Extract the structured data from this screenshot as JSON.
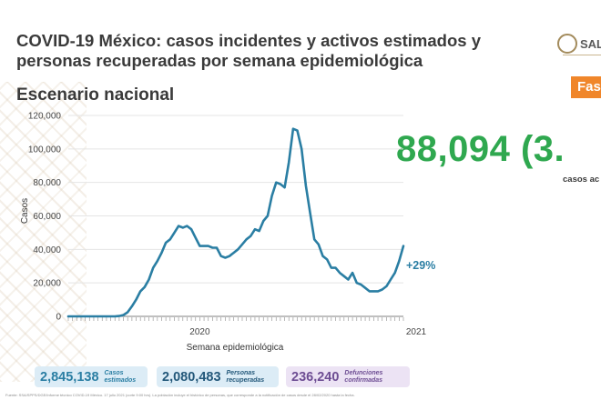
{
  "header": {
    "title": "COVID-19 México: casos incidentes y activos estimados y personas recuperadas por semana epidemiológica",
    "subtitle": "Escenario nacional",
    "logo_text": "SAL",
    "phase_label": "Fas"
  },
  "highlight": {
    "value": "88,094 (3.",
    "caption": "casos ac"
  },
  "colors": {
    "line": "#2a7ea3",
    "title": "#3a3a3a",
    "highlight": "#2fa84f",
    "phase": "#f0862a"
  },
  "chart_data": {
    "type": "line",
    "xlabel": "Semana epidemiológica",
    "ylabel": "Casos",
    "ylim": [
      0,
      120000
    ],
    "yticks": [
      "0",
      "20,000",
      "40,000",
      "60,000",
      "80,000",
      "100,000",
      "120,000"
    ],
    "x_year_labels": [
      {
        "label": "2020",
        "week_index": 31
      },
      {
        "label": "2021",
        "week_index": 82
      }
    ],
    "annotation": "+29%",
    "grid": true,
    "series": [
      {
        "values": [
          0,
          0,
          0,
          0,
          0,
          0,
          0,
          0,
          0,
          0,
          0,
          0,
          200,
          800,
          2500,
          6000,
          10000,
          15000,
          17500,
          22000,
          29000,
          33000,
          38000,
          44000,
          46000,
          50000,
          54000,
          53000,
          54000,
          52000,
          47000,
          42000,
          42000,
          42000,
          41000,
          41000,
          36000,
          35000,
          36000,
          38000,
          40000,
          43000,
          46000,
          48000,
          52000,
          51000,
          57000,
          60000,
          72000,
          80000,
          79000,
          77000,
          92000,
          112000,
          111000,
          100000,
          78000,
          62000,
          46000,
          43000,
          36000,
          34000,
          29000,
          29000,
          26000,
          24000,
          22000,
          26000,
          20000,
          19000,
          17000,
          15000,
          15000,
          15000,
          16000,
          18000,
          22000,
          26000,
          33000,
          42000
        ]
      }
    ]
  },
  "stats": [
    {
      "value": "2,845,138",
      "label": "Casos estimados"
    },
    {
      "value": "2,080,483",
      "label": "Personas recuperadas"
    },
    {
      "value": "236,240",
      "label": "Defunciones confirmadas"
    }
  ],
  "footer": "Fuente: SSA/SPPS/DGE/Informe técnico COVID-19 México. 17 julio 2021 (corte 9:00 hrs). La población incluye el histórico de personas, que corresponde a la notificación de casos desde el 28/02/2020 hasta la fecha."
}
